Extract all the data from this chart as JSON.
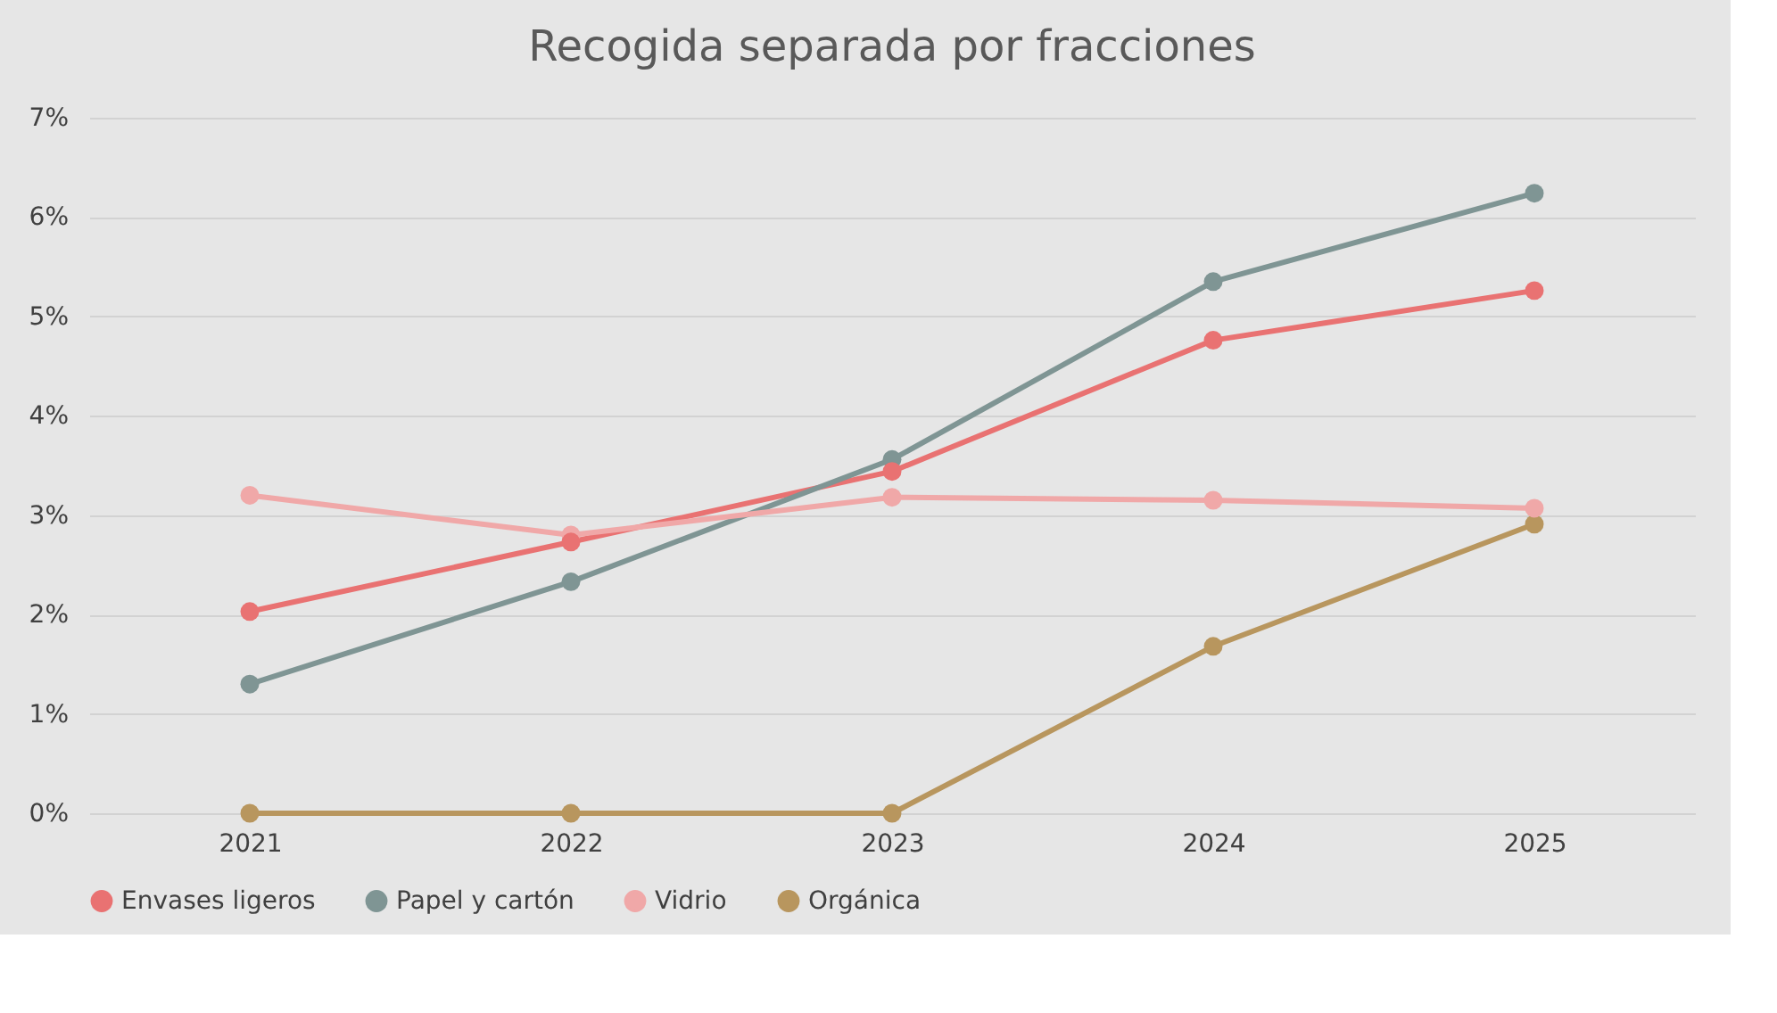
{
  "chart_data": {
    "type": "line",
    "title": "Recogida separada por fracciones",
    "categories": [
      "2021",
      "2022",
      "2023",
      "2024",
      "2025"
    ],
    "series": [
      {
        "name": "Envases ligeros",
        "color": "#e97272",
        "values": [
          2.03,
          2.73,
          3.44,
          4.76,
          5.26
        ]
      },
      {
        "name": "Papel y cartón",
        "color": "#7f9594",
        "values": [
          1.3,
          2.33,
          3.56,
          5.35,
          6.24
        ]
      },
      {
        "name": "Vidrio",
        "color": "#f0a8a8",
        "values": [
          3.2,
          2.8,
          3.18,
          3.15,
          3.07
        ]
      },
      {
        "name": "Orgánica",
        "color": "#b8965e",
        "values": [
          0,
          0,
          0,
          1.68,
          2.91
        ]
      }
    ],
    "ylim": [
      0,
      7
    ],
    "yticks": [
      {
        "value": 0,
        "label": "0%"
      },
      {
        "value": 1,
        "label": "1%"
      },
      {
        "value": 2,
        "label": "2%"
      },
      {
        "value": 3,
        "label": "3%"
      },
      {
        "value": 4,
        "label": "4%"
      },
      {
        "value": 5,
        "label": "5%"
      },
      {
        "value": 6,
        "label": "6%"
      },
      {
        "value": 7,
        "label": "7%"
      }
    ],
    "grid": "y",
    "legend": "bottom",
    "marker": "circle",
    "line_style": "solid"
  }
}
